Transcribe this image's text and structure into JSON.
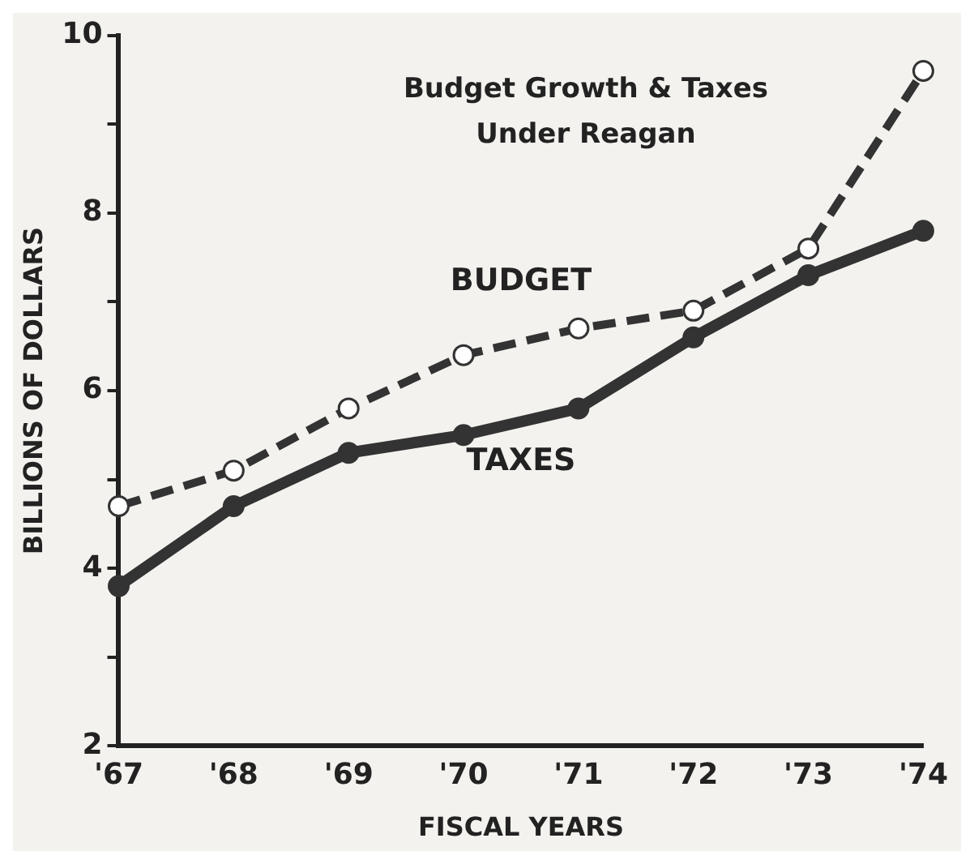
{
  "chart_data": {
    "type": "line",
    "title": "Budget Growth & Taxes\nUnder Reagan",
    "xlabel": "FISCAL YEARS",
    "ylabel": "BILLIONS OF DOLLARS",
    "categories": [
      "'67",
      "'68",
      "'69",
      "'70",
      "'71",
      "'72",
      "'73",
      "'74"
    ],
    "series": [
      {
        "name": "BUDGET",
        "color": "#333333",
        "values": [
          4.7,
          5.1,
          5.8,
          6.4,
          6.7,
          6.9,
          7.6,
          9.6
        ],
        "line_style": "dashed",
        "marker": "circle"
      },
      {
        "name": "TAXES",
        "color": "#333333",
        "values": [
          3.8,
          4.7,
          5.3,
          5.5,
          5.8,
          6.6,
          7.3,
          7.8
        ],
        "line_style": "solid",
        "marker": "circle"
      }
    ],
    "ylim": [
      2,
      10
    ],
    "yticks": [
      2,
      {
        "value": 3,
        "label": null
      },
      4,
      {
        "value": 5,
        "label": null
      },
      6,
      {
        "value": 7,
        "label": null
      },
      8,
      {
        "value": 9,
        "label": null
      },
      10
    ],
    "grid": false,
    "legend": false
  }
}
